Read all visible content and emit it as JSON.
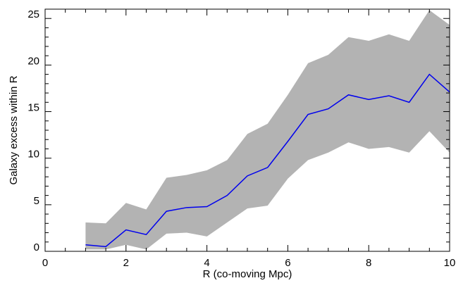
{
  "chart_data": {
    "type": "line-band",
    "xlabel": "R (co-moving Mpc)",
    "ylabel": "Galaxy excess within R",
    "x": [
      1,
      1.5,
      2,
      2.5,
      3,
      3.5,
      4,
      4.5,
      5,
      5.5,
      6,
      6.5,
      7,
      7.5,
      8,
      8.5,
      9,
      9.5,
      10
    ],
    "line": {
      "color": "#0000ee",
      "values": [
        0.7,
        0.5,
        2.3,
        1.8,
        4.3,
        4.7,
        4.8,
        6.0,
        8.1,
        9.0,
        11.8,
        14.7,
        15.3,
        16.8,
        16.3,
        16.7,
        16.0,
        19.0,
        17.1
      ]
    },
    "band": {
      "color": "#b3b3b3",
      "upper": [
        3.1,
        3.0,
        5.2,
        4.5,
        7.9,
        8.2,
        8.7,
        9.8,
        12.6,
        13.7,
        16.8,
        20.2,
        21.1,
        23.0,
        22.6,
        23.3,
        22.6,
        25.9,
        24.3
      ],
      "lower": [
        0.2,
        0.2,
        0.7,
        0.2,
        1.9,
        2.0,
        1.6,
        3.1,
        4.6,
        4.9,
        7.8,
        9.8,
        10.6,
        11.7,
        11.0,
        11.2,
        10.6,
        12.9,
        10.6
      ]
    },
    "xlim": [
      0,
      10
    ],
    "xticks": [
      0,
      2,
      4,
      6,
      8,
      10
    ],
    "ylim": [
      0,
      26
    ],
    "yticks": [
      0,
      5,
      10,
      15,
      20,
      25
    ]
  }
}
